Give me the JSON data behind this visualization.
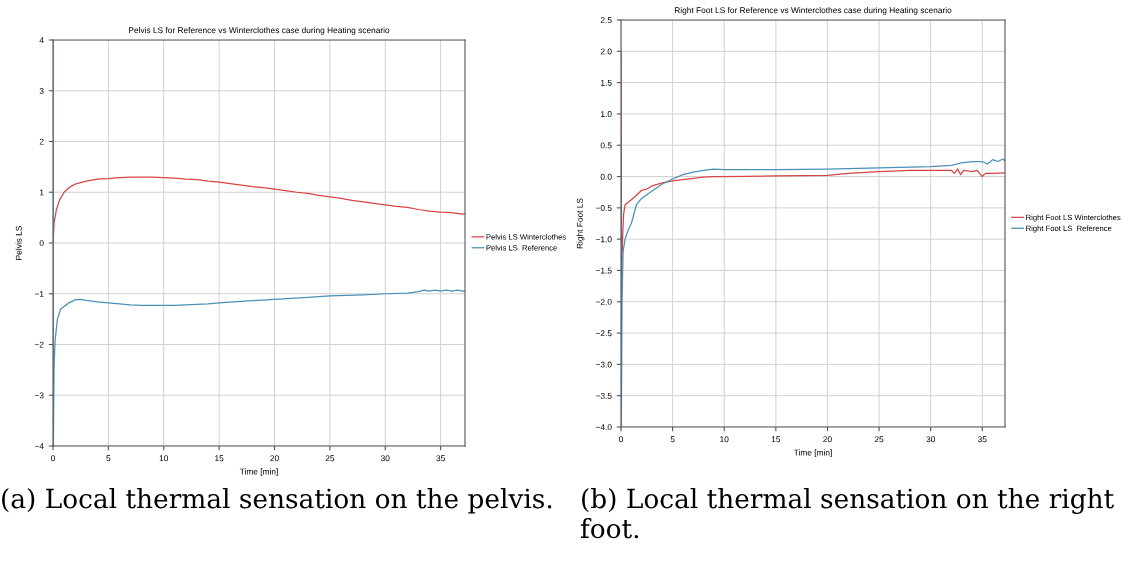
{
  "chart_data": [
    {
      "type": "line",
      "title": "Pelvis LS for Reference vs Winterclothes case during Heating scenario",
      "xlabel": "Time [min]",
      "ylabel": "Pelvis LS",
      "xlim": [
        0,
        37.2
      ],
      "xticks": [
        0,
        5,
        10,
        15,
        20,
        25,
        30,
        35
      ],
      "ylim": [
        -4,
        4
      ],
      "yticks": [
        -4,
        -3,
        -2,
        -1,
        0,
        1,
        2,
        3,
        4
      ],
      "grid": true,
      "legend": "right",
      "annotations": [
        "(a) Local thermal sensation on the pelvis."
      ],
      "series": [
        {
          "name": "Pelvis LS Winterclothes",
          "color": "#d64545",
          "x": [
            0,
            0.1,
            0.3,
            0.6,
            1,
            1.5,
            2,
            3,
            4,
            5,
            6,
            7,
            8,
            9,
            10,
            11,
            12,
            13,
            14,
            15,
            16,
            17,
            18,
            19,
            20,
            21,
            22,
            23,
            24,
            25,
            26,
            27,
            28,
            29,
            30,
            31,
            32,
            33,
            34,
            35,
            36,
            37,
            37.2
          ],
          "values": [
            0.0,
            0.4,
            0.65,
            0.85,
            1.0,
            1.1,
            1.16,
            1.22,
            1.26,
            1.27,
            1.29,
            1.3,
            1.3,
            1.3,
            1.29,
            1.28,
            1.26,
            1.25,
            1.22,
            1.2,
            1.17,
            1.14,
            1.11,
            1.09,
            1.06,
            1.03,
            1.0,
            0.98,
            0.94,
            0.91,
            0.88,
            0.84,
            0.81,
            0.78,
            0.75,
            0.72,
            0.7,
            0.66,
            0.63,
            0.61,
            0.6,
            0.57,
            0.58
          ]
        },
        {
          "name": "Pelvis LS  Reference",
          "color": "#4a90b8",
          "x": [
            0,
            0.03,
            0.1,
            0.2,
            0.4,
            0.7,
            1,
            1.5,
            2,
            2.5,
            3,
            4,
            5,
            6,
            7,
            8,
            9,
            10,
            11,
            12,
            13,
            14,
            15,
            17,
            20,
            23,
            25,
            28,
            30,
            32,
            33,
            33.5,
            34,
            34.5,
            35,
            35.5,
            36,
            36.5,
            37,
            37.2
          ],
          "values": [
            4.0,
            -4.0,
            -2.4,
            -1.9,
            -1.5,
            -1.3,
            -1.25,
            -1.17,
            -1.12,
            -1.11,
            -1.13,
            -1.16,
            -1.18,
            -1.2,
            -1.22,
            -1.23,
            -1.23,
            -1.23,
            -1.23,
            -1.22,
            -1.21,
            -1.2,
            -1.18,
            -1.15,
            -1.11,
            -1.07,
            -1.04,
            -1.02,
            -1.0,
            -0.99,
            -0.96,
            -0.93,
            -0.95,
            -0.93,
            -0.95,
            -0.93,
            -0.95,
            -0.93,
            -0.95,
            -0.94
          ]
        }
      ]
    },
    {
      "type": "line",
      "title": "Right Foot LS for Reference vs Winterclothes case during Heating scenario",
      "xlabel": "Time [min]",
      "ylabel": "Right Foot LS",
      "xlim": [
        0,
        37.2
      ],
      "xticks": [
        0,
        5,
        10,
        15,
        20,
        25,
        30,
        35
      ],
      "ylim": [
        -4.0,
        2.5
      ],
      "yticks": [
        {
          "value": -4,
          "label": "−4.0"
        },
        -3.5,
        {
          "value": -3,
          "label": "−3.0"
        },
        -2.5,
        {
          "value": -2,
          "label": "−2.0"
        },
        -1.5,
        {
          "value": -1,
          "label": "−1.0"
        },
        -0.5,
        {
          "value": 0,
          "label": "0.0"
        },
        0.5,
        {
          "value": 1,
          "label": "1.0"
        },
        1.5,
        {
          "value": 2,
          "label": "2.0"
        },
        2.5
      ],
      "grid": true,
      "legend": "right",
      "annotations": [
        "(b) Local thermal sensation on the right foot."
      ],
      "series": [
        {
          "name": "Right Foot LS Winterclothes",
          "color": "#d64545",
          "x": [
            0,
            0.05,
            0.15,
            0.25,
            0.4,
            0.8,
            1.5,
            2,
            2.5,
            3,
            4,
            5,
            6,
            7,
            8,
            9,
            10,
            15,
            20,
            22,
            25,
            28,
            31,
            32,
            32.3,
            32.6,
            32.9,
            33.2,
            34,
            34.5,
            35,
            35.3,
            36,
            37.2
          ],
          "values": [
            2.0,
            -1.8,
            -1.0,
            -0.6,
            -0.45,
            -0.4,
            -0.3,
            -0.22,
            -0.2,
            -0.15,
            -0.1,
            -0.07,
            -0.05,
            -0.03,
            -0.01,
            0.0,
            0.0,
            0.01,
            0.02,
            0.05,
            0.08,
            0.1,
            0.1,
            0.1,
            0.05,
            0.12,
            0.03,
            0.1,
            0.08,
            0.1,
            0.0,
            0.05,
            0.05,
            0.06
          ]
        },
        {
          "name": "Right Foot LS  Reference",
          "color": "#4a90b8",
          "x": [
            0,
            0.03,
            0.1,
            0.2,
            0.4,
            0.7,
            1,
            1.5,
            2,
            3,
            4,
            5,
            6,
            7,
            8,
            9,
            10,
            15,
            20,
            25,
            30,
            32,
            33,
            34,
            35,
            35.5,
            36,
            36.5,
            37,
            37.2
          ],
          "values": [
            0.6,
            -4.0,
            -2.0,
            -1.2,
            -1.0,
            -0.85,
            -0.75,
            -0.45,
            -0.35,
            -0.23,
            -0.12,
            -0.04,
            0.03,
            0.07,
            0.1,
            0.12,
            0.11,
            0.11,
            0.12,
            0.14,
            0.16,
            0.18,
            0.22,
            0.24,
            0.24,
            0.2,
            0.27,
            0.24,
            0.28,
            0.25
          ]
        }
      ]
    }
  ]
}
